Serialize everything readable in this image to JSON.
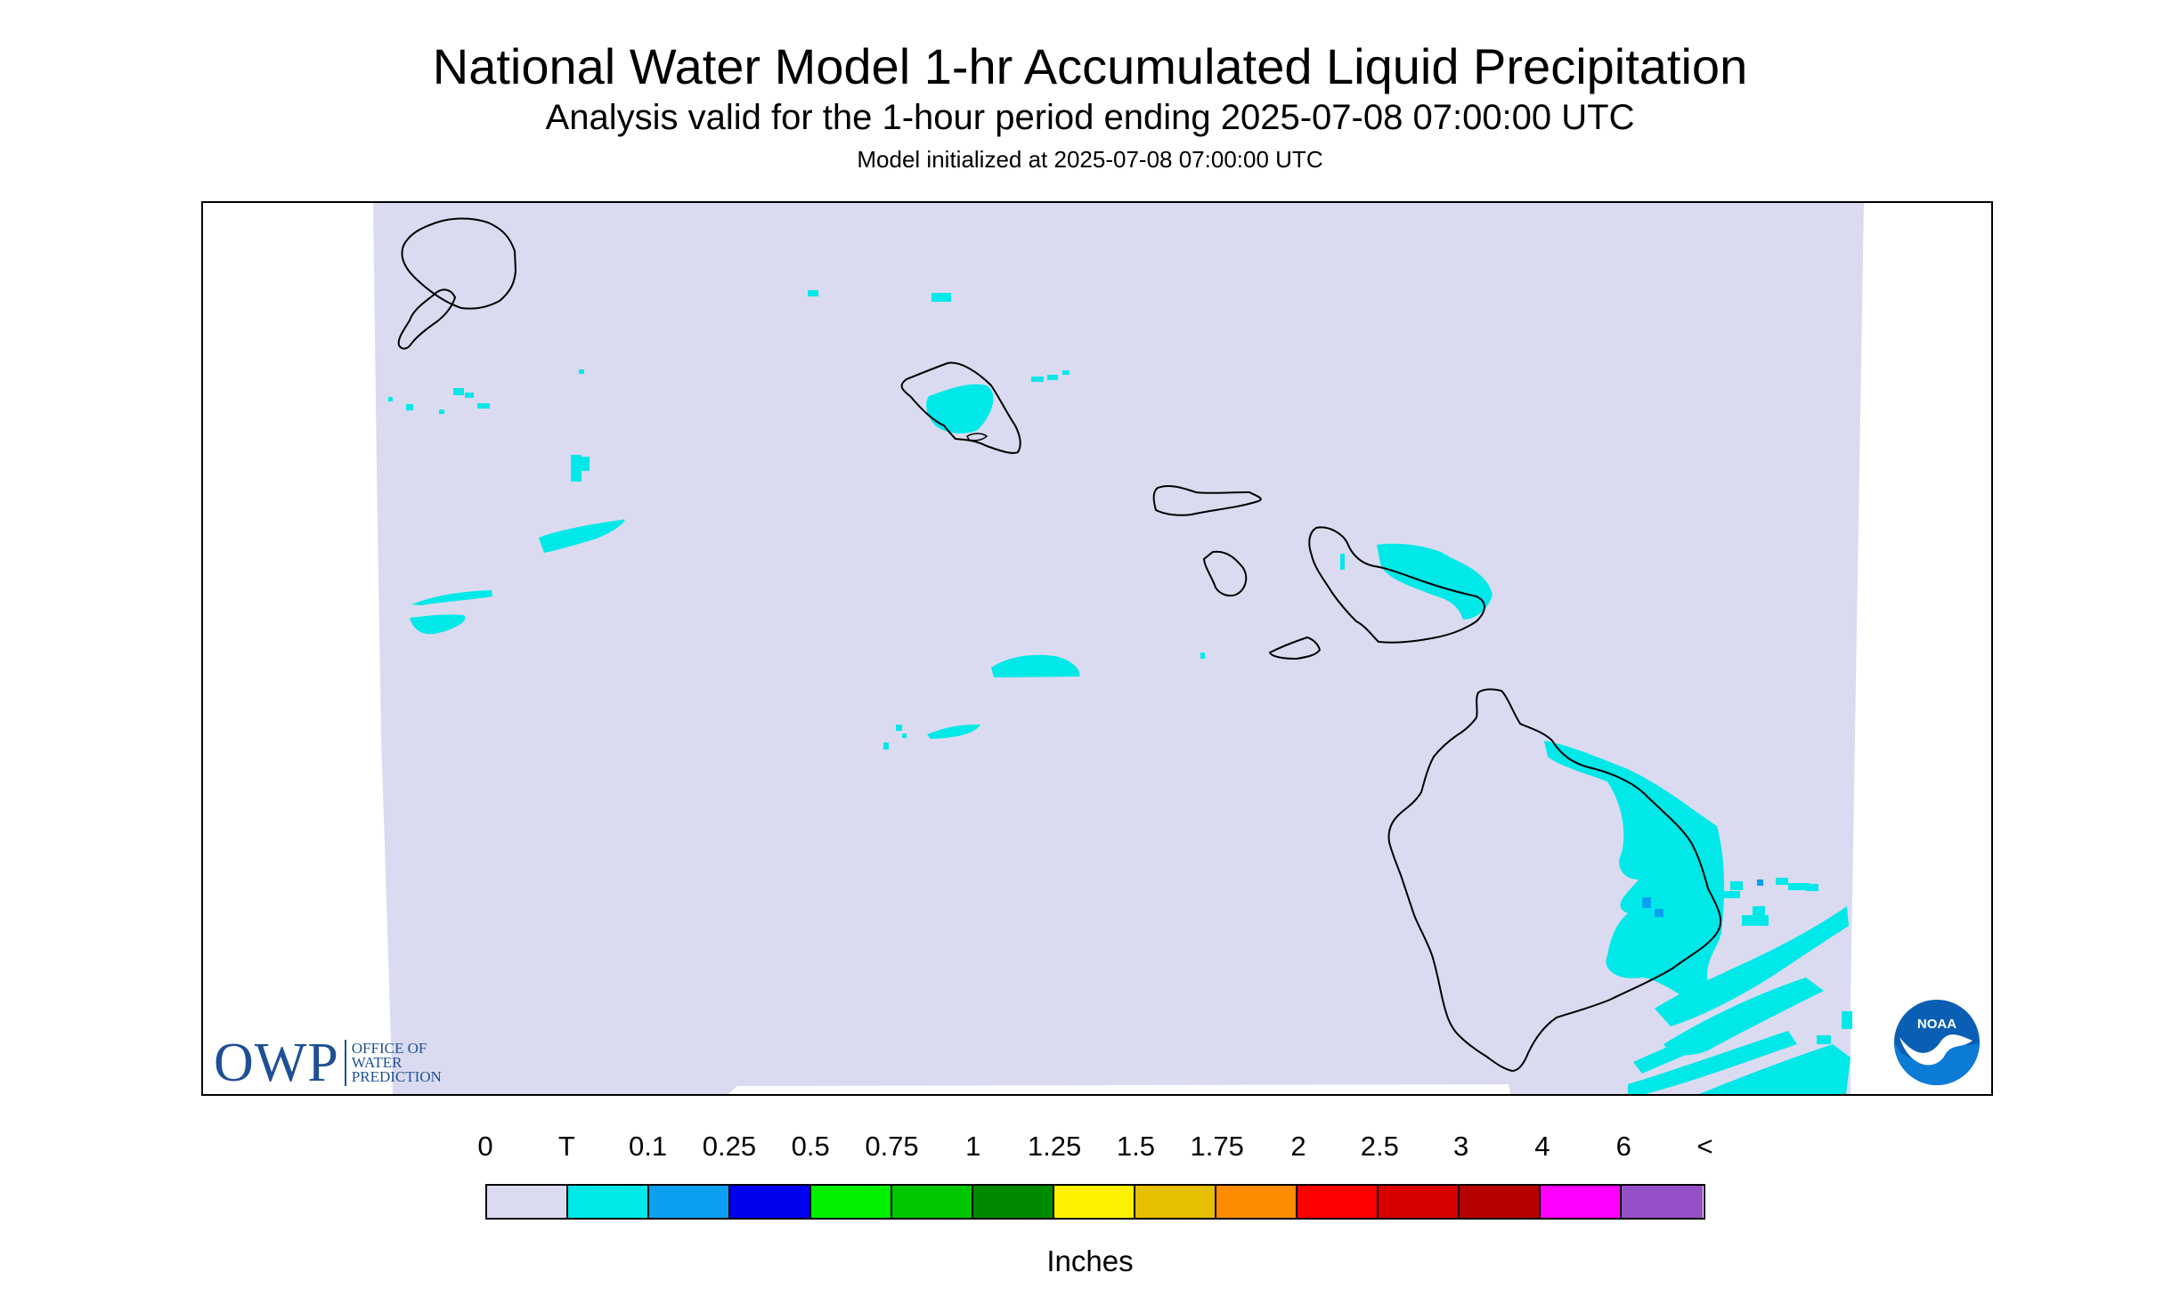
{
  "header": {
    "title": "National Water Model 1-hr Accumulated Liquid Precipitation",
    "subtitle": "Analysis valid for the 1-hour period ending 2025-07-08 07:00:00 UTC",
    "init_line": "Model initialized at 2025-07-08 07:00:00 UTC"
  },
  "map": {
    "region": "Hawaii",
    "field_color": "#dadbf0",
    "coastline_color": "#000000",
    "islands": [
      "Niihau",
      "Kauai",
      "Oahu",
      "Molokai",
      "Lanai",
      "Maui",
      "Kahoolawe",
      "Hawaii"
    ]
  },
  "logos": {
    "owp_letters": "OWP",
    "owp_line1": "OFFICE OF",
    "owp_line2": "WATER",
    "owp_line3": "PREDICTION",
    "noaa_text": "NOAA",
    "owp_color": "#1f4f95",
    "noaa_color": "#0a5fb4"
  },
  "legend": {
    "tick_labels": [
      "0",
      "T",
      "0.1",
      "0.25",
      "0.5",
      "0.75",
      "1",
      "1.25",
      "1.5",
      "1.75",
      "2",
      "2.5",
      "3",
      "4",
      "6",
      "<"
    ],
    "colors": [
      "#dadbf0",
      "#00e8e8",
      "#0ca0f2",
      "#0000f0",
      "#00f000",
      "#00c800",
      "#008a00",
      "#fff200",
      "#e5bf00",
      "#ff8c00",
      "#ff0000",
      "#d90000",
      "#b80000",
      "#ff00ff",
      "#9550c8"
    ],
    "units": "Inches"
  }
}
